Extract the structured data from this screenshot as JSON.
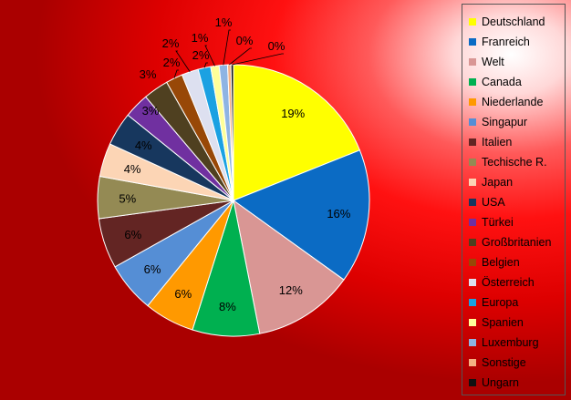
{
  "chart_data": {
    "type": "pie",
    "title": "",
    "legend_position": "right",
    "slices": [
      {
        "name": "Deutschland",
        "value": 19,
        "label": "19%",
        "color": "#ffff00"
      },
      {
        "name": "Franreich",
        "value": 16,
        "label": "16%",
        "color": "#0b6bc4"
      },
      {
        "name": "Welt",
        "value": 12,
        "label": "12%",
        "color": "#d99694"
      },
      {
        "name": "Canada",
        "value": 8,
        "label": "8%",
        "color": "#00b050"
      },
      {
        "name": "Niederlande",
        "value": 6,
        "label": "6%",
        "color": "#ff9900"
      },
      {
        "name": "Singapur",
        "value": 6,
        "label": "6%",
        "color": "#558ed5"
      },
      {
        "name": "Italien",
        "value": 6,
        "label": "6%",
        "color": "#632523"
      },
      {
        "name": "Techische R.",
        "value": 5,
        "label": "5%",
        "color": "#948a54"
      },
      {
        "name": "Japan",
        "value": 4,
        "label": "4%",
        "color": "#fcd5b5"
      },
      {
        "name": "USA",
        "value": 4,
        "label": "4%",
        "color": "#17375e"
      },
      {
        "name": "Türkei",
        "value": 3,
        "label": "3%",
        "color": "#7030a0"
      },
      {
        "name": "Großbritanien",
        "value": 3,
        "label": "3%",
        "color": "#4f4020"
      },
      {
        "name": "Belgien",
        "value": 2,
        "label": "2%",
        "color": "#984807"
      },
      {
        "name": "Österreich",
        "value": 2,
        "label": "2%",
        "color": "#dde0f0"
      },
      {
        "name": "Europa",
        "value": 1.5,
        "label": "2%",
        "color": "#1ba1e2"
      },
      {
        "name": "Spanien",
        "value": 1,
        "label": "1%",
        "color": "#ffff99"
      },
      {
        "name": "Luxemburg",
        "value": 1,
        "label": "1%",
        "color": "#8eb4e3"
      },
      {
        "name": "Sonstige",
        "value": 0.4,
        "label": "0%",
        "color": "#f4b183"
      },
      {
        "name": "Ungarn",
        "value": 0.3,
        "label": "0%",
        "color": "#111111"
      }
    ]
  }
}
